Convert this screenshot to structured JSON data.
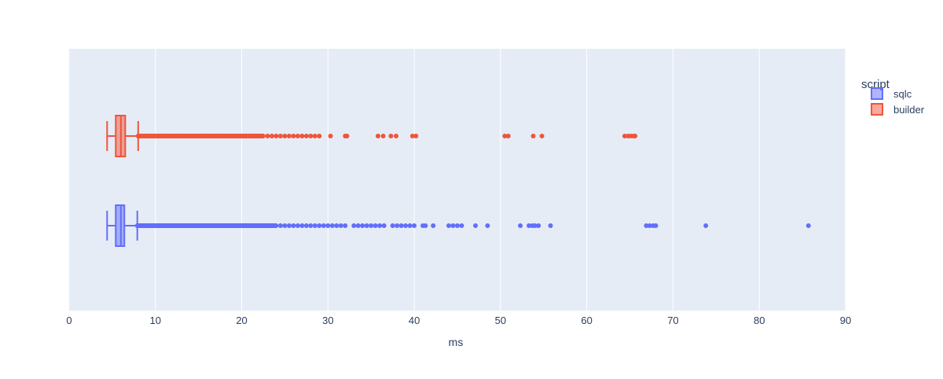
{
  "chart_data": {
    "type": "box",
    "orientation": "horizontal",
    "xlabel": "ms",
    "xlim": [
      0,
      90
    ],
    "x_ticks": [
      0,
      10,
      20,
      30,
      40,
      50,
      60,
      70,
      80,
      90
    ],
    "grid": true,
    "legend": {
      "title": "script",
      "placement": "top-right"
    },
    "series": [
      {
        "name": "sqlc",
        "color": "#636efa",
        "whisker_low": 4.4,
        "q1": 5.4,
        "median": 6.0,
        "q3": 6.4,
        "whisker_high": 7.9,
        "outlier_dense_ranges": [
          [
            7.9,
            24.0
          ]
        ],
        "outliers": [
          24.5,
          25,
          25.5,
          26,
          26.5,
          27,
          27.5,
          28,
          28.5,
          29,
          29.5,
          30,
          30.5,
          31,
          31.5,
          32,
          33,
          33.5,
          34,
          34.5,
          35,
          35.5,
          36,
          36.5,
          37.5,
          38,
          38.5,
          39,
          39.5,
          40,
          41,
          41.3,
          42.2,
          44,
          44.5,
          45,
          45.5,
          47.1,
          48.5,
          52.3,
          53.3,
          53.7,
          54,
          54.4,
          55.8,
          66.9,
          67.3,
          67.7,
          68.0,
          73.8,
          85.7
        ]
      },
      {
        "name": "builder",
        "color": "#ef553b",
        "whisker_low": 4.4,
        "q1": 5.4,
        "median": 6.0,
        "q3": 6.5,
        "whisker_high": 8.0,
        "outlier_dense_ranges": [
          [
            8.0,
            22.5
          ]
        ],
        "outliers": [
          23,
          23.5,
          24,
          24.5,
          25,
          25.5,
          26,
          26.5,
          27,
          27.5,
          28,
          28.5,
          29,
          30.3,
          32,
          32.2,
          35.8,
          36.4,
          37.3,
          37.9,
          39.8,
          40.2,
          50.5,
          50.9,
          53.8,
          54.8,
          64.4,
          64.8,
          65.1,
          65.4,
          65.6
        ]
      }
    ]
  }
}
